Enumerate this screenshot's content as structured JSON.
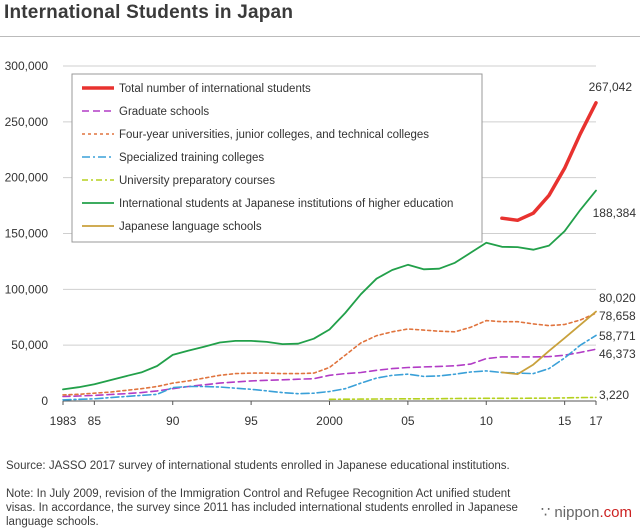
{
  "title": "International Students in Japan",
  "footnote": {
    "source": "Source: JASSO 2017 survey of international students enrolled in Japanese educational institutions.",
    "note": "Note: In July 2009, revision of the Immigration Control and Refugee Recognition Act unified student visas. In accordance, the survey since 2011 has included international students enrolled in Japanese language schools."
  },
  "logo": {
    "prefix": "∵ nippon",
    "suffix": ".com"
  },
  "chart_data": {
    "type": "line",
    "title": "International Students in Japan",
    "xlim": [
      1983,
      2017
    ],
    "ylim": [
      0,
      300000
    ],
    "y_ticks": [
      0,
      50000,
      100000,
      150000,
      200000,
      250000,
      300000
    ],
    "y_tick_labels": [
      "0",
      "50,000",
      "100,000",
      "150,000",
      "200,000",
      "250,000",
      "300,000"
    ],
    "x_ticks": [
      1983,
      1985,
      1990,
      1995,
      2000,
      2005,
      2010,
      2015,
      2017
    ],
    "x_tick_labels": [
      "1983",
      "85",
      "90",
      "95",
      "2000",
      "05",
      "10",
      "15",
      "17"
    ],
    "legend_position": "top-left",
    "series": [
      {
        "name": "Total number of international students",
        "color": "#e8322f",
        "dash": "",
        "width": 3.5,
        "x": [
          2011,
          2012,
          2013,
          2014,
          2015,
          2016,
          2017
        ],
        "values": [
          163697,
          161848,
          168145,
          184155,
          208379,
          239287,
          267042
        ],
        "end_label": "267,042"
      },
      {
        "name": "Graduate schools",
        "color": "#b23cc6",
        "dash": "7,4",
        "width": 1.6,
        "x": [
          1983,
          1984,
          1985,
          1986,
          1987,
          1988,
          1989,
          1990,
          1991,
          1992,
          1993,
          1994,
          1995,
          1996,
          1997,
          1998,
          1999,
          2000,
          2001,
          2002,
          2003,
          2004,
          2005,
          2006,
          2007,
          2008,
          2009,
          2010,
          2011,
          2012,
          2013,
          2014,
          2015,
          2016,
          2017
        ],
        "values": [
          4000,
          4500,
          5000,
          5800,
          6500,
          7500,
          9000,
          11000,
          13000,
          14500,
          16000,
          17000,
          18000,
          18500,
          19000,
          19500,
          20000,
          23000,
          24500,
          25500,
          27500,
          29000,
          30000,
          30500,
          31000,
          31500,
          33000,
          38000,
          39500,
          39500,
          39500,
          39800,
          41000,
          43500,
          46373
        ],
        "end_label": "46,373"
      },
      {
        "name": "Four-year universities, junior colleges, and technical colleges",
        "color": "#e0743e",
        "dash": "3,3",
        "width": 1.6,
        "x": [
          1983,
          1984,
          1985,
          1986,
          1987,
          1988,
          1989,
          1990,
          1991,
          1992,
          1993,
          1994,
          1995,
          1996,
          1997,
          1998,
          1999,
          2000,
          2001,
          2002,
          2003,
          2004,
          2005,
          2006,
          2007,
          2008,
          2009,
          2010,
          2011,
          2012,
          2013,
          2014,
          2015,
          2016,
          2017
        ],
        "values": [
          5500,
          6000,
          7000,
          8000,
          9500,
          11000,
          13000,
          16000,
          18000,
          20500,
          23000,
          24500,
          25000,
          25000,
          24500,
          24500,
          25000,
          30000,
          41000,
          52000,
          58500,
          62000,
          64500,
          63500,
          62500,
          62000,
          66000,
          72000,
          71000,
          71000,
          69000,
          67500,
          68500,
          72500,
          78658
        ],
        "end_label": "78,658"
      },
      {
        "name": "Specialized training colleges",
        "color": "#3aa0d8",
        "dash": "8,3,2,3",
        "width": 1.6,
        "x": [
          1983,
          1984,
          1985,
          1986,
          1987,
          1988,
          1989,
          1990,
          1991,
          1992,
          1993,
          1994,
          1995,
          1996,
          1997,
          1998,
          1999,
          2000,
          2001,
          2002,
          2003,
          2004,
          2005,
          2006,
          2007,
          2008,
          2009,
          2010,
          2011,
          2012,
          2013,
          2014,
          2015,
          2016,
          2017
        ],
        "values": [
          1000,
          1500,
          2000,
          3000,
          4000,
          5000,
          6000,
          12000,
          13000,
          13000,
          12500,
          11500,
          10500,
          9000,
          7500,
          6500,
          7000,
          8500,
          11000,
          16000,
          20500,
          23000,
          24000,
          22000,
          22500,
          24000,
          26000,
          27000,
          25500,
          25000,
          24500,
          29000,
          38500,
          50000,
          58771
        ],
        "end_label": "58,771"
      },
      {
        "name": "University preparatory courses",
        "color": "#b5d11e",
        "dash": "6,3,2,3",
        "width": 1.6,
        "x": [
          2000,
          2001,
          2002,
          2003,
          2004,
          2005,
          2006,
          2007,
          2008,
          2009,
          2010,
          2011,
          2012,
          2013,
          2014,
          2015,
          2016,
          2017
        ],
        "values": [
          1500,
          1600,
          1700,
          1800,
          1900,
          2000,
          2000,
          2100,
          2200,
          2300,
          2400,
          2400,
          2400,
          2500,
          2600,
          2800,
          3000,
          3220
        ],
        "end_label": "3,220"
      },
      {
        "name": "International students at Japanese institutions of higher education",
        "color": "#22a04a",
        "dash": "",
        "width": 1.8,
        "x": [
          1983,
          1984,
          1985,
          1986,
          1987,
          1988,
          1989,
          1990,
          1991,
          1992,
          1993,
          1994,
          1995,
          1996,
          1997,
          1998,
          1999,
          2000,
          2001,
          2002,
          2003,
          2004,
          2005,
          2006,
          2007,
          2008,
          2009,
          2010,
          2011,
          2012,
          2013,
          2014,
          2015,
          2016,
          2017
        ],
        "values": [
          10400,
          12400,
          15000,
          18600,
          22200,
          25600,
          31300,
          41300,
          45100,
          48600,
          52400,
          53800,
          53800,
          52900,
          51000,
          51300,
          55800,
          64000,
          78800,
          95600,
          109500,
          117300,
          122000,
          117900,
          118500,
          123800,
          132700,
          141800,
          138100,
          137800,
          135500,
          139200,
          152100,
          171100,
          188384
        ],
        "end_label": "188,384"
      },
      {
        "name": "Japanese language schools",
        "color": "#c9a13c",
        "dash": "",
        "width": 1.8,
        "x": [
          2011,
          2012,
          2013,
          2014,
          2015,
          2016,
          2017
        ],
        "values": [
          25600,
          24100,
          32600,
          44900,
          56300,
          68200,
          80020
        ],
        "end_label": "80,020"
      }
    ]
  }
}
